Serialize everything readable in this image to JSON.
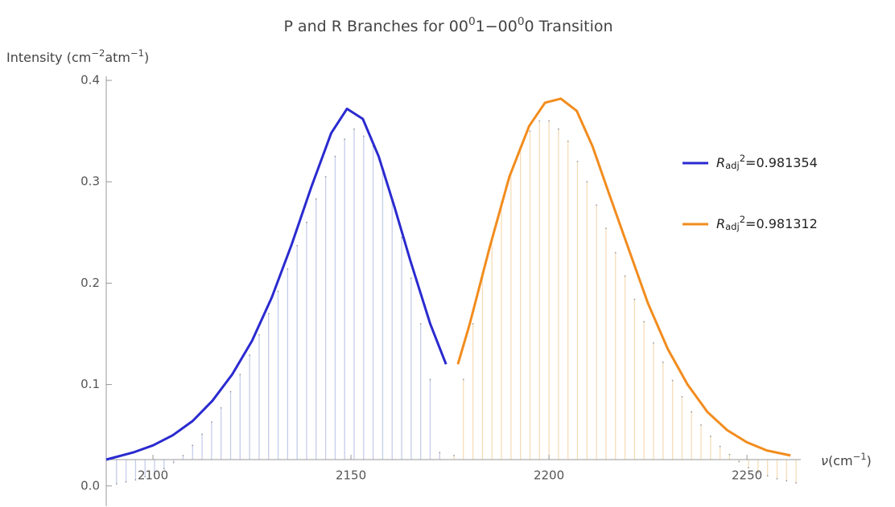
{
  "chart_data": {
    "type": "line",
    "title": [
      {
        "text": "P and R Branches for 00"
      },
      {
        "text": "0",
        "sup": true
      },
      {
        "text": "1−00"
      },
      {
        "text": "0",
        "sup": true
      },
      {
        "text": "0 Transition"
      }
    ],
    "y_label": [
      {
        "text": "Intensity (cm"
      },
      {
        "text": "−2",
        "sup": true
      },
      {
        "text": "atm"
      },
      {
        "text": "−1",
        "sup": true
      },
      {
        "text": ")"
      }
    ],
    "x_label": [
      {
        "text": "ν",
        "italic": true
      },
      {
        "text": "(cm"
      },
      {
        "text": "−1",
        "sup": true
      },
      {
        "text": ")"
      }
    ],
    "xlim": [
      2088.2,
      2263.6
    ],
    "ylim": [
      -0.02,
      0.404
    ],
    "axes_origin": {
      "x": 2088.2,
      "y": 0.026
    },
    "xticks": [
      2100,
      2150,
      2200,
      2250
    ],
    "yticks": [
      {
        "value": 0,
        "label": "0.0"
      },
      0.1,
      0.2,
      0.3,
      0.4
    ],
    "legend": "right",
    "series": [
      {
        "name": [
          {
            "text": "R",
            "italic": true
          },
          {
            "text": "adj",
            "sub": true
          },
          {
            "text": "2",
            "sup": true
          },
          {
            "text": "=0.981354"
          }
        ],
        "color": "#2a2ad0",
        "x": [
          2088.2,
          2095,
          2100,
          2105,
          2110,
          2115,
          2120,
          2125,
          2130,
          2135,
          2140,
          2145,
          2149,
          2153,
          2157,
          2161,
          2165,
          2170,
          2174
        ],
        "values": [
          0.026,
          0.033,
          0.04,
          0.05,
          0.064,
          0.084,
          0.11,
          0.143,
          0.186,
          0.238,
          0.295,
          0.348,
          0.372,
          0.362,
          0.325,
          0.275,
          0.222,
          0.16,
          0.12
        ]
      },
      {
        "name": [
          {
            "text": "R",
            "italic": true
          },
          {
            "text": "adj",
            "sub": true
          },
          {
            "text": "2",
            "sup": true
          },
          {
            "text": "=0.981312"
          }
        ],
        "color": "#f28c1e",
        "x": [
          2177,
          2180,
          2185,
          2190,
          2195,
          2199,
          2203,
          2207,
          2211,
          2215,
          2220,
          2225,
          2230,
          2235,
          2240,
          2245,
          2250,
          2255,
          2261
        ],
        "values": [
          0.12,
          0.16,
          0.235,
          0.305,
          0.355,
          0.378,
          0.382,
          0.37,
          0.335,
          0.29,
          0.235,
          0.18,
          0.135,
          0.1,
          0.073,
          0.055,
          0.043,
          0.035,
          0.03
        ]
      }
    ],
    "sticks": [
      {
        "color": "#c5cdec",
        "x": [
          2090.8,
          2093.2,
          2095.6,
          2098.0,
          2100.4,
          2102.8,
          2105.2,
          2107.6,
          2110.0,
          2112.4,
          2114.8,
          2117.2,
          2119.6,
          2122.0,
          2124.4,
          2126.8,
          2129.2,
          2131.6,
          2134.0,
          2136.4,
          2138.8,
          2141.2,
          2143.6,
          2146.0,
          2148.4,
          2150.8,
          2153.2,
          2155.6,
          2158.0,
          2160.4,
          2162.8,
          2165.2,
          2167.6,
          2170.0,
          2172.4
        ],
        "values": [
          0.002,
          0.004,
          0.006,
          0.009,
          0.012,
          0.017,
          0.023,
          0.03,
          0.04,
          0.051,
          0.063,
          0.077,
          0.093,
          0.11,
          0.129,
          0.149,
          0.17,
          0.192,
          0.214,
          0.237,
          0.26,
          0.283,
          0.305,
          0.325,
          0.342,
          0.352,
          0.345,
          0.335,
          0.313,
          0.28,
          0.245,
          0.205,
          0.16,
          0.105,
          0.033
        ]
      },
      {
        "color": "#f6dcb8",
        "x": [
          2176.0,
          2178.4,
          2180.8,
          2183.2,
          2185.6,
          2188.0,
          2190.4,
          2192.8,
          2195.2,
          2197.6,
          2200.0,
          2202.4,
          2204.8,
          2207.2,
          2209.6,
          2212.0,
          2214.4,
          2216.8,
          2219.2,
          2221.6,
          2224.0,
          2226.4,
          2228.8,
          2231.2,
          2233.6,
          2236.0,
          2238.4,
          2240.8,
          2243.2,
          2245.6,
          2248.0,
          2250.4,
          2252.8,
          2255.2,
          2257.6,
          2260.0,
          2262.4
        ],
        "values": [
          0.03,
          0.105,
          0.16,
          0.205,
          0.245,
          0.28,
          0.31,
          0.335,
          0.35,
          0.36,
          0.36,
          0.352,
          0.34,
          0.32,
          0.3,
          0.277,
          0.254,
          0.23,
          0.207,
          0.184,
          0.162,
          0.141,
          0.122,
          0.104,
          0.088,
          0.073,
          0.06,
          0.049,
          0.039,
          0.031,
          0.024,
          0.018,
          0.013,
          0.01,
          0.007,
          0.005,
          0.003
        ]
      }
    ]
  }
}
